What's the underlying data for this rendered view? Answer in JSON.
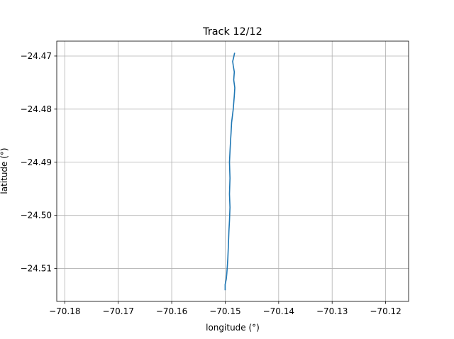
{
  "chart_data": {
    "type": "line",
    "title": "Track 12/12",
    "xlabel": "longitude (°)",
    "ylabel": "latitude (°)",
    "xlim": [
      -70.1815,
      -70.1157
    ],
    "ylim": [
      -24.5162,
      -24.4672
    ],
    "xticks": [
      -70.18,
      -70.17,
      -70.16,
      -70.15,
      -70.14,
      -70.13,
      -70.12
    ],
    "xtick_labels": [
      "−70.18",
      "−70.17",
      "−70.16",
      "−70.15",
      "−70.14",
      "−70.13",
      "−70.12"
    ],
    "yticks": [
      -24.47,
      -24.48,
      -24.49,
      -24.5,
      -24.51
    ],
    "ytick_labels": [
      "−24.47",
      "−24.48",
      "−24.49",
      "−24.50",
      "−24.51"
    ],
    "grid": true,
    "series": [
      {
        "color": "#1f77b4",
        "x": [
          -70.14825,
          -70.1484,
          -70.1486,
          -70.1485,
          -70.1483,
          -70.1484,
          -70.1482,
          -70.1483,
          -70.1485,
          -70.1488,
          -70.1489,
          -70.149,
          -70.1491,
          -70.1492,
          -70.1491,
          -70.1492,
          -70.1491,
          -70.1492,
          -70.1493,
          -70.1494,
          -70.1495,
          -70.1496,
          -70.1497,
          -70.1498,
          -70.1499,
          -70.15,
          -70.15
        ],
        "y": [
          -24.4695,
          -24.4702,
          -24.471,
          -24.4718,
          -24.473,
          -24.4745,
          -24.476,
          -24.4775,
          -24.48,
          -24.4825,
          -24.4845,
          -24.486,
          -24.488,
          -24.49,
          -24.493,
          -24.496,
          -24.4985,
          -24.501,
          -24.503,
          -24.5055,
          -24.508,
          -24.5095,
          -24.511,
          -24.512,
          -24.5125,
          -24.513,
          -24.514
        ]
      }
    ]
  }
}
